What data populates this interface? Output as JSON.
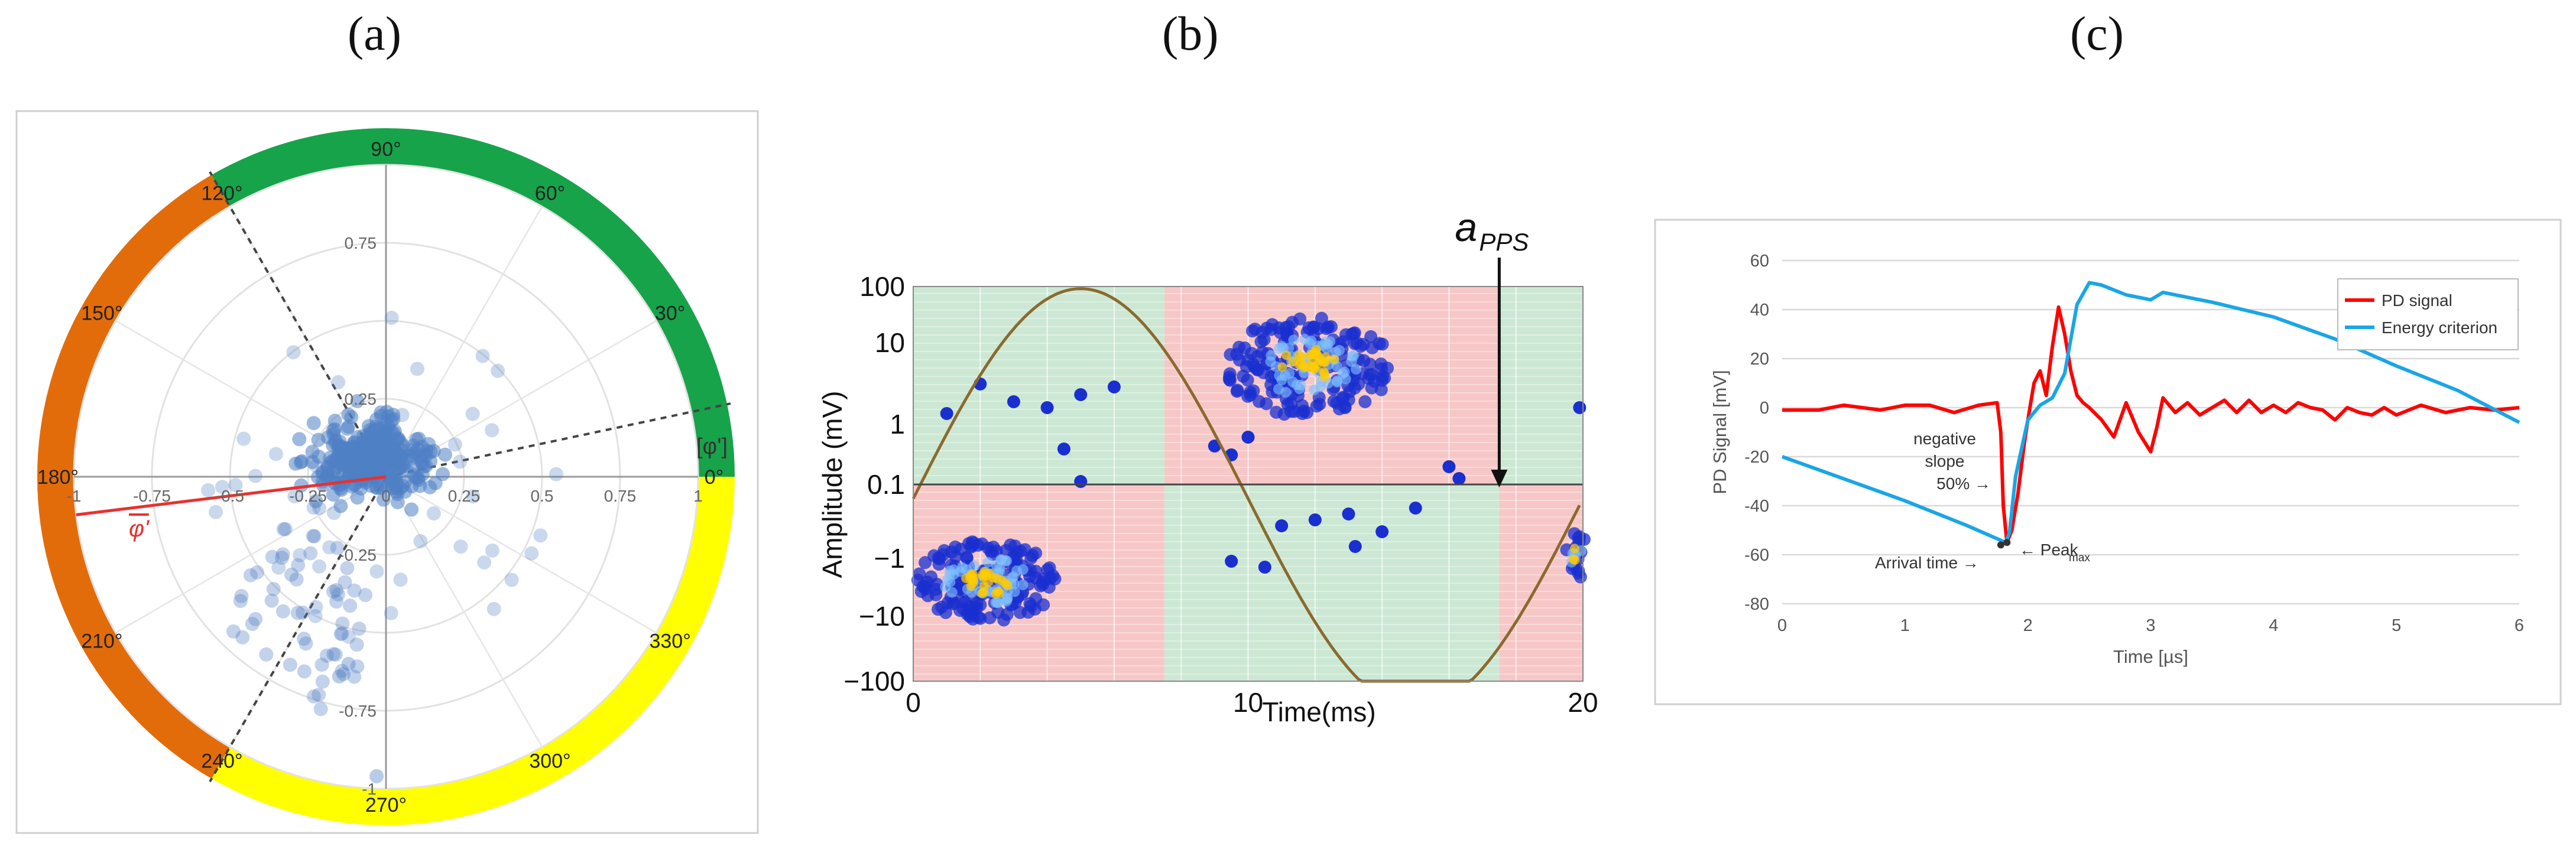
{
  "panel_labels": [
    "(a)",
    "(b)",
    "(c)"
  ],
  "chart_data": [
    {
      "type": "scatter",
      "subtype": "polar",
      "title": "",
      "radial_ticks": [
        "0.25",
        "0.5",
        "0.75",
        "1"
      ],
      "x_ticks": [
        "-1",
        "-0.75",
        "-0.5",
        "-0.25",
        "0",
        "0.25",
        "0.5",
        "0.75",
        "1"
      ],
      "y_ticks": [
        "0.75",
        "0.25",
        "-0.25",
        "-0.75",
        "-1"
      ],
      "angle_labels": [
        "0°",
        "30°",
        "60°",
        "90°",
        "120°",
        "150°",
        "180°",
        "210°",
        "240°",
        "270°",
        "300°",
        "330°"
      ],
      "sectors": [
        {
          "from_deg": 0,
          "to_deg": 120,
          "color": "#17a34a",
          "name": "green"
        },
        {
          "from_deg": 120,
          "to_deg": 240,
          "color": "#e36c0a",
          "name": "orange"
        },
        {
          "from_deg": 240,
          "to_deg": 360,
          "color": "#ffff00",
          "name": "yellow"
        }
      ],
      "boundary_lines_deg": [
        12,
        120,
        240
      ],
      "mean_vector": {
        "angle_deg": 187,
        "length": 1.0,
        "label": "φ'",
        "color": "#e8312f"
      },
      "reference_label": "[φ']",
      "point_color": "#4f7fc4"
    },
    {
      "type": "heatmap",
      "title": "",
      "xlabel": "Time(ms)",
      "ylabel": "Amplitude (mV)",
      "xlim": [
        0,
        20
      ],
      "x_ticks": [
        "0",
        "10",
        "20"
      ],
      "y_ticks": [
        "100",
        "10",
        "1",
        "0.1",
        "−1",
        "−10",
        "−100"
      ],
      "annotation": {
        "label": "a",
        "subscript": "PPS",
        "x": 17.5
      },
      "sine": {
        "period_ms": 20,
        "amplitude": 100,
        "color": "#8b6a2e"
      },
      "band_breaks_ms": [
        7.5,
        17.5
      ],
      "colors": {
        "green": "#cce8d4",
        "red": "#f7c7c7",
        "cluster": "#1a2fd0"
      }
    },
    {
      "type": "line",
      "title": "",
      "xlabel": "Time [µs]",
      "ylabel": "PD Signal [mV]",
      "xlim": [
        0,
        6
      ],
      "ylim": [
        -80,
        60
      ],
      "x_ticks": [
        "0",
        "1",
        "2",
        "3",
        "4",
        "5",
        "6"
      ],
      "y_ticks": [
        "60",
        "40",
        "20",
        "0",
        "-20",
        "-40",
        "-60",
        "-80"
      ],
      "series": [
        {
          "name": "PD signal",
          "color": "#ff0000",
          "x": [
            0,
            0.3,
            0.5,
            0.8,
            1.0,
            1.2,
            1.4,
            1.6,
            1.75,
            1.78,
            1.8,
            1.83,
            1.87,
            1.92,
            1.97,
            2.0,
            2.05,
            2.1,
            2.15,
            2.2,
            2.25,
            2.3,
            2.35,
            2.4,
            2.45,
            2.5,
            2.6,
            2.7,
            2.8,
            2.9,
            3.0,
            3.05,
            3.1,
            3.2,
            3.3,
            3.4,
            3.5,
            3.6,
            3.7,
            3.8,
            3.9,
            4.0,
            4.1,
            4.2,
            4.3,
            4.4,
            4.5,
            4.6,
            4.7,
            4.8,
            4.9,
            5.0,
            5.2,
            5.4,
            5.6,
            5.8,
            6.0
          ],
          "y": [
            -1,
            -1,
            1,
            -1,
            1,
            1,
            -2,
            1,
            2,
            -10,
            -40,
            -55,
            -50,
            -35,
            -15,
            -5,
            10,
            15,
            5,
            25,
            41,
            30,
            15,
            5,
            2,
            0,
            -5,
            -12,
            2,
            -10,
            -18,
            -8,
            4,
            -2,
            2,
            -3,
            0,
            3,
            -2,
            3,
            -2,
            1,
            -2,
            2,
            0,
            -1,
            -5,
            0,
            -2,
            -3,
            0,
            -3,
            1,
            -2,
            0,
            -1,
            0
          ]
        },
        {
          "name": "Energy criterion",
          "color": "#19a6e6",
          "x": [
            0,
            0.5,
            1.0,
            1.5,
            1.82,
            1.85,
            1.9,
            2.0,
            2.1,
            2.2,
            2.3,
            2.4,
            2.5,
            2.6,
            2.8,
            3.0,
            3.1,
            3.3,
            3.5,
            4.0,
            4.5,
            5.0,
            5.5,
            6.0
          ],
          "y": [
            -20,
            -29,
            -38,
            -48,
            -55,
            -51,
            -28,
            -5,
            1,
            4,
            14,
            42,
            51,
            50,
            46,
            44,
            47,
            45,
            43,
            37,
            28,
            17,
            7,
            -6
          ]
        }
      ],
      "legend": {
        "entries": [
          "PD signal",
          "Energy criterion"
        ],
        "position": "top-right"
      },
      "annotations": {
        "negative_slope_line1": "negative",
        "negative_slope_line2": "slope",
        "fifty_percent": "50% →",
        "arrival_time": "Arrival time →",
        "peak": "← Peak",
        "peak_sub": "max"
      }
    }
  ]
}
